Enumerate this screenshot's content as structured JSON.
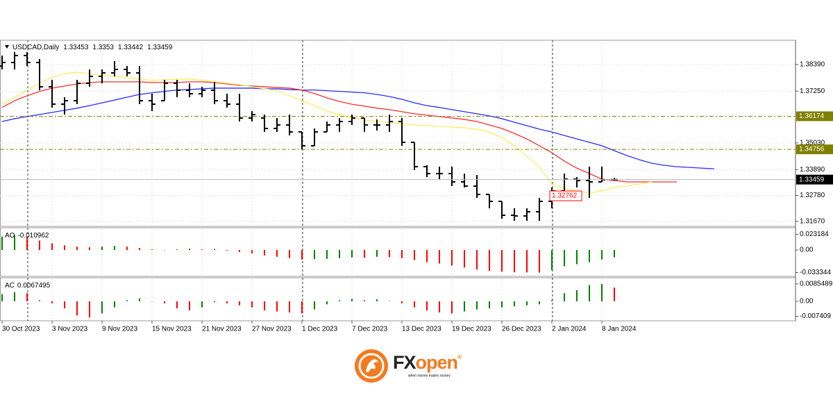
{
  "chart_data": [
    {
      "type": "ohlc",
      "title": "USDCAD,Daily",
      "color": "#000000",
      "grid": true,
      "categories": [
        "30 Oct 2023",
        null,
        null,
        null,
        "3 Nov 2023",
        null,
        null,
        null,
        "9 Nov 2023",
        null,
        null,
        null,
        "15 Nov 2023",
        null,
        null,
        null,
        "21 Nov 2023",
        null,
        null,
        null,
        "27 Nov 2023",
        null,
        null,
        null,
        "1 Dec 2023",
        null,
        null,
        null,
        "7 Dec 2023",
        null,
        null,
        null,
        "13 Dec 2023",
        null,
        null,
        null,
        "19 Dec 2023",
        null,
        null,
        null,
        "26 Dec 2023",
        null,
        null,
        null,
        "2 Jan 2024",
        null,
        null,
        null,
        "8 Jan 2024",
        null,
        null,
        null,
        null,
        null,
        null,
        null,
        null,
        null
      ],
      "open": [
        1.3833,
        1.38479,
        1.38777,
        1.38479,
        1.37437,
        1.36693,
        1.36842,
        1.37586,
        1.37884,
        1.38033,
        1.38182,
        1.38033,
        1.36842,
        1.36842,
        1.37586,
        1.37289,
        1.3714,
        1.37289,
        1.36842,
        1.36693,
        1.36098,
        1.36098,
        1.35651,
        1.358,
        1.35502,
        1.34907,
        1.35502,
        1.358,
        1.35949,
        1.36098,
        1.358,
        1.358,
        1.35949,
        1.35056,
        1.34014,
        1.33716,
        1.33716,
        1.33359,
        1.33181,
        1.32823,
        1.32525,
        1.3193,
        1.319,
        1.3208,
        1.32525,
        1.32972,
        1.33478,
        1.33418,
        1.33359,
        1.33453,
        null,
        null,
        null,
        null,
        null,
        null,
        null,
        null
      ],
      "high": [
        1.38777,
        1.38926,
        1.38926,
        1.38628,
        1.37735,
        1.36991,
        1.37735,
        1.38182,
        1.38182,
        1.38539,
        1.3833,
        1.3833,
        1.3714,
        1.37735,
        1.37735,
        1.37586,
        1.37437,
        1.37646,
        1.3714,
        1.3714,
        1.36395,
        1.36247,
        1.36098,
        1.36247,
        1.35502,
        1.35651,
        1.35949,
        1.36098,
        1.36247,
        1.36098,
        1.36038,
        1.36247,
        1.36098,
        1.35056,
        1.34073,
        1.34014,
        1.34014,
        1.33716,
        1.33657,
        1.32823,
        1.32525,
        1.32228,
        1.32228,
        1.32674,
        1.33121,
        1.33716,
        1.33567,
        1.34014,
        1.34014,
        1.3353,
        null,
        null,
        null,
        null,
        null,
        null,
        null,
        null
      ],
      "low": [
        1.38182,
        1.38182,
        1.3833,
        1.37289,
        1.36544,
        1.36247,
        1.36693,
        1.37437,
        1.37586,
        1.37884,
        1.37884,
        1.36693,
        1.36395,
        1.36842,
        1.36991,
        1.36991,
        1.36991,
        1.36693,
        1.36544,
        1.35949,
        1.35949,
        1.35502,
        1.35502,
        1.35353,
        1.34758,
        1.34907,
        1.35502,
        1.35502,
        1.358,
        1.35502,
        1.35562,
        1.35502,
        1.34907,
        1.33865,
        1.33567,
        1.33478,
        1.33181,
        1.33121,
        1.32674,
        1.32228,
        1.31781,
        1.31692,
        1.31692,
        1.31692,
        1.32228,
        1.32972,
        1.33121,
        1.32674,
        1.33359,
        1.33442,
        null,
        null,
        null,
        null,
        null,
        null,
        null,
        null
      ],
      "close": [
        1.38479,
        1.38777,
        1.38479,
        1.37437,
        1.36693,
        1.36842,
        1.37586,
        1.37884,
        1.38033,
        1.38182,
        1.38033,
        1.36842,
        1.36693,
        1.37586,
        1.37289,
        1.3714,
        1.37289,
        1.36842,
        1.36693,
        1.36098,
        1.36247,
        1.35651,
        1.358,
        1.35502,
        1.34907,
        1.35502,
        1.358,
        1.35949,
        1.36098,
        1.358,
        1.358,
        1.35949,
        1.35056,
        1.34014,
        1.33716,
        1.33716,
        1.33359,
        1.33181,
        1.32823,
        1.32525,
        1.3193,
        1.319,
        1.3208,
        1.32525,
        1.32972,
        1.33478,
        1.33418,
        1.33359,
        1.33453,
        1.33459,
        null,
        null,
        null,
        null,
        null,
        null,
        null,
        null
      ],
      "series": [
        {
          "color": "#2b2bff",
          "values": [
            1.3595,
            1.3607,
            1.3616,
            1.3625,
            1.3634,
            1.3643,
            1.3652,
            1.3663,
            1.3675,
            1.3687,
            1.3699,
            1.3711,
            1.3718,
            1.3724,
            1.373,
            1.3732,
            1.3735,
            1.3738,
            1.3738,
            1.3738,
            1.3738,
            1.3735,
            1.3735,
            1.3732,
            1.373,
            1.373,
            1.3727,
            1.3724,
            1.3721,
            1.3718,
            1.3711,
            1.3702,
            1.369,
            1.3675,
            1.3663,
            1.3655,
            1.3646,
            1.3637,
            1.3628,
            1.3619,
            1.3607,
            1.3592,
            1.3577,
            1.3562,
            1.355,
            1.3535,
            1.352,
            1.3506,
            1.3491,
            1.347,
            1.3449,
            1.3431,
            1.3416,
            1.3407,
            1.3401,
            1.3398,
            1.3395,
            1.3392
          ]
        },
        {
          "color": "#f03030",
          "values": [
            1.3655,
            1.3684,
            1.3705,
            1.3724,
            1.3738,
            1.3747,
            1.3756,
            1.3762,
            1.3765,
            1.3765,
            1.3765,
            1.3765,
            1.3762,
            1.3762,
            1.3762,
            1.3765,
            1.3765,
            1.3762,
            1.3756,
            1.375,
            1.3747,
            1.3744,
            1.3741,
            1.3738,
            1.373,
            1.3715,
            1.3696,
            1.3681,
            1.3669,
            1.3661,
            1.3652,
            1.3646,
            1.3637,
            1.3628,
            1.3622,
            1.3616,
            1.361,
            1.3604,
            1.3595,
            1.358,
            1.3565,
            1.3544,
            1.352,
            1.3491,
            1.3461,
            1.3425,
            1.3395,
            1.3372,
            1.3348,
            1.3342,
            1.3336,
            1.3336,
            1.3336,
            1.3336,
            1.3336,
            null,
            null,
            null
          ]
        },
        {
          "color": "#f5f060",
          "values": [
            1.3669,
            1.3699,
            1.373,
            1.3759,
            1.3783,
            1.38,
            1.3806,
            1.38,
            1.3794,
            1.3788,
            1.3783,
            1.3777,
            1.3771,
            1.3774,
            1.3777,
            1.3777,
            1.3771,
            1.3765,
            1.3759,
            1.3753,
            1.3744,
            1.3735,
            1.3727,
            1.3705,
            1.3684,
            1.3663,
            1.364,
            1.3625,
            1.361,
            1.3601,
            1.3595,
            1.3592,
            1.3586,
            1.358,
            1.3577,
            1.3574,
            1.3571,
            1.3568,
            1.3562,
            1.355,
            1.3526,
            1.3491,
            1.3446,
            1.3401,
            1.3327,
            1.3306,
            1.3297,
            1.3288,
            1.3297,
            1.3312,
            1.3318,
            1.3327,
            1.3336,
            null,
            null,
            null,
            null,
            null
          ]
        }
      ],
      "ylim": [
        1.31454,
        1.39432
      ],
      "yticks": [
        {
          "value": 1.3839,
          "label": "1.38390"
        },
        {
          "value": 1.3725,
          "label": "1.37250"
        },
        {
          "value": 1.3503,
          "label": "1.35030"
        },
        {
          "value": 1.3389,
          "label": "1.33890"
        },
        {
          "value": 1.3278,
          "label": "1.32780"
        },
        {
          "value": 1.3167,
          "label": "1.31670"
        }
      ],
      "levels": [
        {
          "value": 1.36174,
          "color": "#808000"
        },
        {
          "value": 1.34756,
          "color": "#808000"
        }
      ],
      "annotations": [
        {
          "value": 1.32762,
          "color": "#ff0000"
        }
      ]
    },
    {
      "type": "histogram",
      "title": "AO",
      "up_color": "#008000",
      "down_color": "#ff0000",
      "values": [
        0.02,
        0.022,
        0.019,
        0.014,
        0.01,
        0.007,
        0.005,
        0.004,
        0.005,
        0.006,
        0.005,
        0.003,
        0.001,
        0.0,
        0.001,
        0.002,
        0.001,
        0.0015,
        -0.001,
        -0.003,
        -0.005,
        -0.008,
        -0.01,
        -0.012,
        -0.014,
        -0.0135,
        -0.013,
        -0.012,
        -0.011,
        -0.0115,
        -0.01,
        -0.0105,
        -0.012,
        -0.015,
        -0.018,
        -0.02,
        -0.023,
        -0.026,
        -0.029,
        -0.031,
        -0.032,
        -0.033,
        -0.0332,
        -0.0334,
        -0.03,
        -0.024,
        -0.021,
        -0.018,
        -0.014,
        -0.010962
      ],
      "ylim": [
        -0.039,
        0.033
      ],
      "yticks": [
        0.023184,
        {
          "value": 0,
          "label": "0.00"
        },
        -0.033344
      ]
    },
    {
      "type": "histogram",
      "title": "AC",
      "up_color": "#008000",
      "down_color": "#ff0000",
      "values": [
        0.0035,
        0.0045,
        0.004,
        0.0005,
        -0.001,
        -0.0035,
        -0.007,
        -0.008,
        -0.006,
        -0.003,
        0.0005,
        0.0015,
        0.0,
        -0.001,
        -0.0035,
        -0.0045,
        -0.003,
        -0.0005,
        -0.001,
        -0.002,
        -0.003,
        -0.0045,
        -0.005,
        -0.0055,
        -0.006,
        -0.004,
        -0.0015,
        0.0005,
        0.0012,
        0.0005,
        0.001,
        0.0002,
        -0.001,
        -0.003,
        -0.0045,
        -0.0055,
        -0.006,
        -0.005,
        -0.004,
        -0.0035,
        -0.003,
        -0.0025,
        -0.002,
        -0.0015,
        0.0005,
        0.004,
        0.0055,
        0.008,
        0.0085,
        0.0067495
      ],
      "ylim": [
        -0.0096,
        0.0116
      ],
      "yticks": [
        0.0085489,
        {
          "value": 0,
          "label": "0.00"
        },
        -0.007409
      ]
    }
  ],
  "logo": {
    "brand_1": "FX",
    "brand_2": "open",
    "registered": "®",
    "tagline": "when money makes money"
  }
}
